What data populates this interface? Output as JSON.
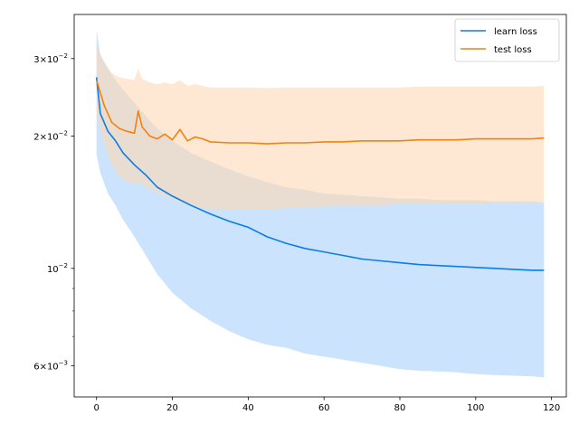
{
  "chart_data": {
    "type": "line",
    "title": "",
    "xlabel": "",
    "ylabel": "",
    "yscale": "log",
    "xlim": [
      -5.9,
      123.9
    ],
    "ylim": [
      0.0051,
      0.0378
    ],
    "grid": false,
    "legend_position": "top-right",
    "x_ticks": [
      0,
      20,
      40,
      60,
      80,
      100,
      120
    ],
    "x_tick_labels": [
      "0",
      "20",
      "40",
      "60",
      "80",
      "100",
      "120"
    ],
    "y_ticks": [
      0.006,
      0.01,
      0.02,
      0.03
    ],
    "y_tick_labels": [
      {
        "mantissa": "6",
        "base": "10",
        "exp": "−3"
      },
      {
        "mantissa": "",
        "base": "10",
        "exp": "−2"
      },
      {
        "mantissa": "2",
        "base": "10",
        "exp": "−2"
      },
      {
        "mantissa": "3",
        "base": "10",
        "exp": "−2"
      }
    ],
    "y_minor_ticks": [
      0.007,
      0.008,
      0.009,
      0.04
    ],
    "series": [
      {
        "name": "learn loss",
        "color": "#0a7ee6",
        "band_color": "#a8d0fa",
        "x": [
          0,
          1,
          3,
          5,
          7,
          10,
          13,
          16,
          20,
          25,
          30,
          35,
          40,
          45,
          50,
          55,
          60,
          65,
          70,
          75,
          80,
          85,
          90,
          95,
          100,
          105,
          110,
          115,
          118
        ],
        "y": [
          0.0272,
          0.0225,
          0.0205,
          0.0195,
          0.0183,
          0.0172,
          0.0163,
          0.0153,
          0.0146,
          0.0139,
          0.0133,
          0.0128,
          0.0124,
          0.0118,
          0.0114,
          0.0111,
          0.0109,
          0.0107,
          0.0105,
          0.0104,
          0.0103,
          0.0102,
          0.01015,
          0.0101,
          0.01005,
          0.01,
          0.00995,
          0.0099,
          0.0099
        ],
        "low": [
          0.0182,
          0.0165,
          0.0148,
          0.0139,
          0.0129,
          0.0118,
          0.0107,
          0.0097,
          0.0088,
          0.0081,
          0.0076,
          0.0072,
          0.0069,
          0.0067,
          0.0066,
          0.0064,
          0.0063,
          0.0062,
          0.0061,
          0.006,
          0.0059,
          0.00585,
          0.00583,
          0.0058,
          0.00575,
          0.00572,
          0.0057,
          0.00568,
          0.00565
        ],
        "high": [
          0.0348,
          0.0305,
          0.0285,
          0.0268,
          0.0255,
          0.0238,
          0.0222,
          0.0208,
          0.0195,
          0.0183,
          0.0175,
          0.0168,
          0.0162,
          0.0157,
          0.0153,
          0.0151,
          0.0148,
          0.0147,
          0.0146,
          0.0145,
          0.0144,
          0.0144,
          0.0143,
          0.0143,
          0.0143,
          0.0142,
          0.0142,
          0.0142,
          0.0141
        ]
      },
      {
        "name": "test loss",
        "color": "#f6800c",
        "band_color": "#fdd9b6",
        "x": [
          0,
          2,
          4,
          6,
          8,
          10,
          11,
          12,
          14,
          16,
          18,
          20,
          22,
          24,
          26,
          28,
          30,
          35,
          40,
          45,
          50,
          55,
          60,
          65,
          70,
          75,
          80,
          85,
          90,
          95,
          100,
          105,
          110,
          115,
          118
        ],
        "y": [
          0.0268,
          0.0235,
          0.0215,
          0.0208,
          0.0205,
          0.0203,
          0.0228,
          0.021,
          0.02,
          0.0197,
          0.0202,
          0.0196,
          0.0207,
          0.0195,
          0.0199,
          0.0197,
          0.0194,
          0.0193,
          0.0193,
          0.0192,
          0.0193,
          0.0193,
          0.0194,
          0.0194,
          0.0195,
          0.0195,
          0.0195,
          0.0196,
          0.0196,
          0.0196,
          0.0197,
          0.0197,
          0.0197,
          0.0197,
          0.0198
        ],
        "low": [
          0.0223,
          0.0192,
          0.0172,
          0.0162,
          0.0158,
          0.0155,
          0.0158,
          0.0155,
          0.0152,
          0.0149,
          0.0146,
          0.0144,
          0.0142,
          0.0139,
          0.0138,
          0.0137,
          0.0136,
          0.0136,
          0.0136,
          0.0136,
          0.0137,
          0.0138,
          0.0138,
          0.0139,
          0.0139,
          0.0139,
          0.014,
          0.014,
          0.014,
          0.014,
          0.014,
          0.0141,
          0.0141,
          0.0141,
          0.0141
        ],
        "high": [
          0.0322,
          0.0295,
          0.0278,
          0.0272,
          0.027,
          0.0268,
          0.0285,
          0.027,
          0.0265,
          0.0262,
          0.0265,
          0.0262,
          0.0268,
          0.026,
          0.0262,
          0.026,
          0.0258,
          0.0258,
          0.0258,
          0.0257,
          0.0258,
          0.0258,
          0.0258,
          0.0258,
          0.0258,
          0.0258,
          0.0258,
          0.0259,
          0.0259,
          0.0259,
          0.0259,
          0.0259,
          0.0259,
          0.0259,
          0.026
        ]
      }
    ]
  }
}
